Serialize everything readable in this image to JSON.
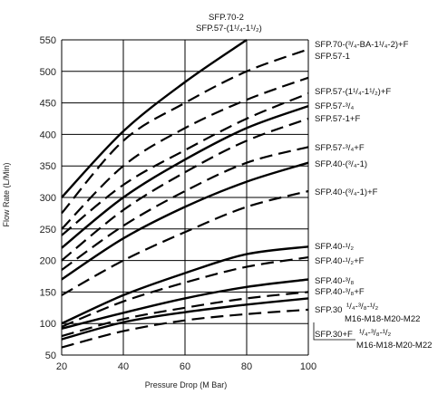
{
  "chart_data": {
    "type": "line",
    "title": "",
    "xlabel": "Pressure Drop (M Bar)",
    "ylabel": "Flow Rate (L/Min)",
    "xlim": [
      20,
      100
    ],
    "ylim": [
      50,
      550
    ],
    "xticks": [
      "20",
      "40",
      "60",
      "80",
      "100"
    ],
    "yticks": [
      "50",
      "100",
      "150",
      "200",
      "250",
      "300",
      "350",
      "400",
      "450",
      "500",
      "550"
    ],
    "grid": true,
    "legend": "right",
    "series": [
      {
        "name": "SFP.70-2",
        "style": "solid",
        "x": [
          20,
          40,
          60,
          80
        ],
        "y": [
          300,
          405,
          483,
          550
        ]
      },
      {
        "name": "SFP.70-(3/4-BA-1 1/4-2)+F",
        "style": "dashed",
        "x": [
          20,
          40,
          60,
          80,
          100
        ],
        "y": [
          275,
          390,
          450,
          500,
          535
        ]
      },
      {
        "name": "SFP.57-1",
        "style": "dashed",
        "x": [
          20,
          40,
          60,
          80,
          100
        ],
        "y": [
          250,
          350,
          410,
          455,
          490
        ]
      },
      {
        "name": "SFP.57-(1 1/4-1 1/2)+F",
        "style": "dashed",
        "x": [
          20,
          40,
          60,
          80,
          100
        ],
        "y": [
          240,
          320,
          375,
          425,
          465
        ]
      },
      {
        "name": "SFP.57-3/4",
        "style": "solid",
        "x": [
          20,
          40,
          60,
          80,
          100
        ],
        "y": [
          220,
          300,
          360,
          410,
          445
        ]
      },
      {
        "name": "SFP.57-1+F",
        "style": "dashed",
        "x": [
          20,
          40,
          60,
          80,
          100
        ],
        "y": [
          200,
          280,
          340,
          390,
          425
        ]
      },
      {
        "name": "SFP.57-3/4+F",
        "style": "dashed",
        "x": [
          20,
          40,
          60,
          80,
          100
        ],
        "y": [
          185,
          255,
          310,
          355,
          380
        ]
      },
      {
        "name": "SFP.40-(3/4-1)",
        "style": "solid",
        "x": [
          20,
          40,
          60,
          80,
          100
        ],
        "y": [
          170,
          235,
          285,
          325,
          355
        ]
      },
      {
        "name": "SFP.40-(3/4-1)+F",
        "style": "dashed",
        "x": [
          20,
          40,
          60,
          80,
          100
        ],
        "y": [
          145,
          200,
          245,
          285,
          310
        ]
      },
      {
        "name": "SFP.40-1/2",
        "style": "solid",
        "x": [
          20,
          40,
          60,
          80,
          100
        ],
        "y": [
          100,
          145,
          180,
          210,
          222
        ]
      },
      {
        "name": "SFP.40-1/2+F",
        "style": "dashed",
        "x": [
          20,
          40,
          60,
          80,
          100
        ],
        "y": [
          95,
          135,
          165,
          190,
          205
        ]
      },
      {
        "name": "SFP.40-3/8",
        "style": "solid",
        "x": [
          20,
          40,
          60,
          80,
          100
        ],
        "y": [
          92,
          117,
          140,
          158,
          170
        ]
      },
      {
        "name": "SFP.40-3/8+F",
        "style": "dashed",
        "x": [
          20,
          40,
          60,
          80,
          100
        ],
        "y": [
          80,
          107,
          125,
          140,
          150
        ]
      },
      {
        "name": "SFP.30 1/4-3/8-1/2 M16-M18-M20-M22",
        "style": "solid",
        "x": [
          20,
          40,
          60,
          80,
          100
        ],
        "y": [
          75,
          102,
          118,
          130,
          140
        ]
      },
      {
        "name": "SFP.30+F 1/4-3/8-1/2 M16-M18-M20-M22",
        "style": "dashed",
        "x": [
          20,
          40,
          60,
          80,
          100
        ],
        "y": [
          62,
          88,
          105,
          115,
          122
        ]
      }
    ],
    "labels": {
      "l1": "SFP.70-2",
      "l2": "SFP.57-(1¹/₄-1¹/₂)",
      "l3": "SFP.70-(³/₄-BA-1¹/₄-2)+F",
      "l4": "SFP.57-1",
      "l5": "SFP.57-(1¹/₄-1¹/₂)+F",
      "l6": "SFP.57-³/₄",
      "l7": "SFP.57-1+F",
      "l8": "SFP.57-³/₄+F",
      "l9": "SFP.40-(³/₄-1)",
      "l10": "SFP.40-(³/₄-1)+F",
      "l11": "SFP.40-¹/₂",
      "l12": "SFP.40-¹/₂+F",
      "l13": "SFP.40-³/₈",
      "l14": "SFP.40-³/₈+F",
      "l15a": "SFP.30",
      "l15b": "¹/₄-³/₈-¹/₂",
      "l15c": "M16-M18-M20-M22",
      "l16a": "SFP.30+F",
      "l16b": "¹/₄-³/₈-¹/₂",
      "l16c": "M16-M18-M20-M22"
    }
  }
}
